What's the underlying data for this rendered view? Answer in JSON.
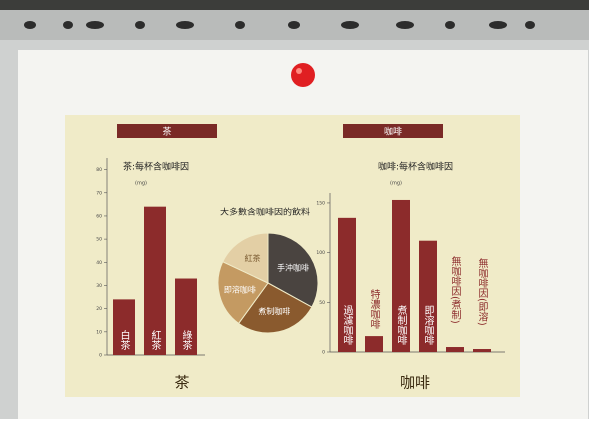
{
  "chart_data": [
    {
      "type": "bar",
      "header": "茶",
      "title": "茶:每杯含咖啡因",
      "unit": "(mg)",
      "footer": "茶",
      "categories": [
        "白茶",
        "紅茶",
        "綠茶"
      ],
      "values": [
        24,
        64,
        33
      ],
      "color": "#8c2b2b",
      "ylim": [
        0,
        85
      ],
      "yticks": [
        0,
        10,
        20,
        30,
        40,
        50,
        60,
        70,
        80
      ]
    },
    {
      "type": "pie",
      "title": "大多數含咖啡因的飲料",
      "categories": [
        "手沖咖啡",
        "煮制咖啡",
        "即溶咖啡",
        "紅茶"
      ],
      "values": [
        33,
        27,
        22,
        18
      ],
      "colors": [
        "#4a4440",
        "#8a5a2e",
        "#c49a62",
        "#e3cfa5"
      ]
    },
    {
      "type": "bar",
      "header": "咖啡",
      "title": "咖啡:每杯含咖啡因",
      "unit": "(mg)",
      "footer": "咖啡",
      "categories": [
        "過濾咖啡",
        "特濃咖啡",
        "煮制咖啡",
        "即溶咖啡",
        "無咖啡因(煮制)",
        "無咖啡因(即溶)"
      ],
      "values": [
        135,
        16,
        153,
        112,
        5,
        3
      ],
      "color": "#8c2b2b",
      "ylim": [
        0,
        160
      ],
      "yticks": [
        0,
        50,
        100,
        150
      ]
    }
  ]
}
